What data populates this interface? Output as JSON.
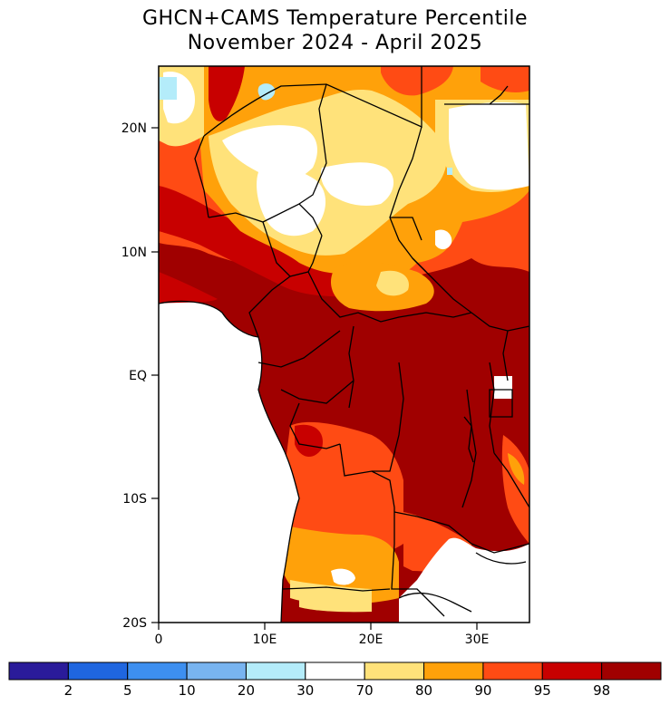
{
  "title_line1": "GHCN+CAMS Temperature Percentile",
  "title_line2": "November 2024 - April 2025",
  "lat_labels": [
    "20N",
    "10N",
    "EQ",
    "10S",
    "20S"
  ],
  "lon_labels": [
    "0",
    "10E",
    "20E",
    "30E"
  ],
  "colorbar": {
    "colors": [
      "#2a1b9a",
      "#1f66e0",
      "#3d8ff0",
      "#78b4f0",
      "#b4ecfa",
      "#ffffff",
      "#ffe27a",
      "#ffa10a",
      "#ff4b14",
      "#c80000",
      "#a00000"
    ],
    "labels": [
      "2",
      "5",
      "10",
      "20",
      "30",
      "70",
      "80",
      "90",
      "95",
      "98"
    ]
  },
  "palette": {
    "white": "#ffffff",
    "light_yellow": "#ffe27a",
    "orange": "#ffa10a",
    "red_orange": "#ff4b14",
    "red": "#c80000",
    "dark_red": "#a00000",
    "light_blue": "#b4ecfa"
  }
}
